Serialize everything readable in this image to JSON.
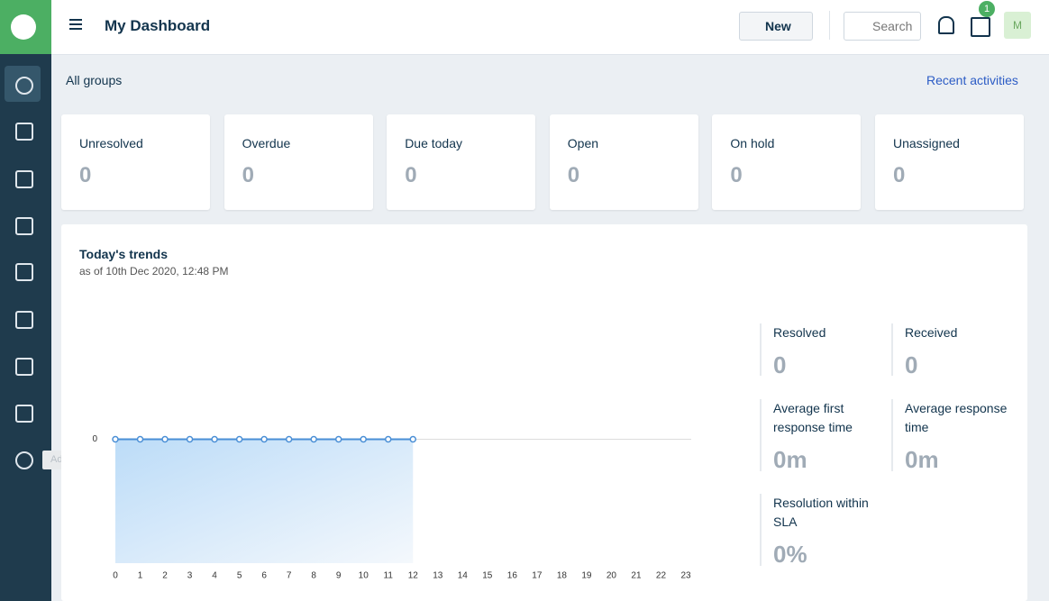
{
  "header": {
    "title": "My Dashboard",
    "new_button": "New",
    "search_placeholder": "Search",
    "gift_badge": "1",
    "avatar": "M"
  },
  "sidebar": {
    "tooltip": "Admin"
  },
  "toolbar": {
    "group_filter": "All groups",
    "recent_link": "Recent activities"
  },
  "cards": [
    {
      "label": "Unresolved",
      "value": 0
    },
    {
      "label": "Overdue",
      "value": 0
    },
    {
      "label": "Due today",
      "value": 0
    },
    {
      "label": "Open",
      "value": 0
    },
    {
      "label": "On hold",
      "value": 0
    },
    {
      "label": "Unassigned",
      "value": 0
    }
  ],
  "trends": {
    "title": "Today's trends",
    "subtitle": "as of 10th Dec 2020, 12:48 PM",
    "metrics": [
      {
        "label": "Resolved",
        "value": "0"
      },
      {
        "label": "Received",
        "value": "0"
      },
      {
        "label": "Average first response time",
        "value": "0m"
      },
      {
        "label": "Average response time",
        "value": "0m"
      },
      {
        "label": "Resolution within SLA",
        "value": "0%"
      }
    ]
  },
  "chart_data": {
    "type": "line",
    "x": [
      0,
      1,
      2,
      3,
      4,
      5,
      6,
      7,
      8,
      9,
      10,
      11,
      12,
      13,
      14,
      15,
      16,
      17,
      18,
      19,
      20,
      21,
      22,
      23
    ],
    "values": [
      0,
      0,
      0,
      0,
      0,
      0,
      0,
      0,
      0,
      0,
      0,
      0,
      0,
      null,
      null,
      null,
      null,
      null,
      null,
      null,
      null,
      null,
      null,
      null
    ],
    "color": "#4a8fd6",
    "xlim": [
      0,
      23
    ],
    "ylim": [
      -1,
      1
    ],
    "yticks": [
      0
    ],
    "grid": true
  }
}
